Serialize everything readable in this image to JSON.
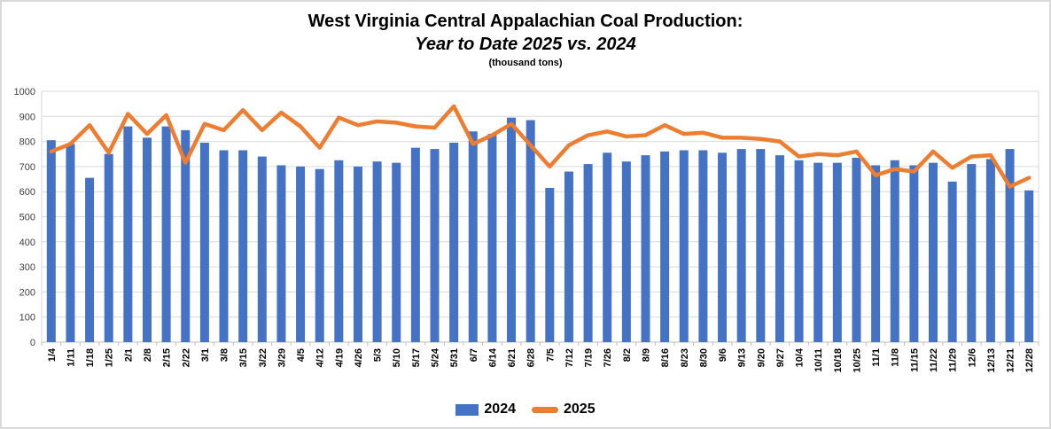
{
  "header": {
    "title": "West Virginia Central Appalachian Coal Production:",
    "subtitle": "Year to Date 2025 vs. 2024",
    "units": "(thousand tons)"
  },
  "colors": {
    "bar_2024": "#4472C4",
    "line_2025": "#ED7D31",
    "gridline": "#D9D9D9",
    "axis_line": "#BFBFBF",
    "y_tick_label": "#404040",
    "x_tick_label": "#000000",
    "background": "#FFFFFF"
  },
  "chart_data": {
    "type": "combo",
    "title": "West Virginia Central Appalachian Coal Production:",
    "subtitle": "Year to Date 2025 vs. 2024",
    "units_label": "(thousand tons)",
    "grid": true,
    "legend_position": "bottom",
    "ylim": [
      0,
      1000
    ],
    "y_ticks": [
      0,
      100,
      200,
      300,
      400,
      500,
      600,
      700,
      800,
      900,
      1000
    ],
    "categories": [
      "1/4",
      "1/11",
      "1/18",
      "1/25",
      "2/1",
      "2/8",
      "2/15",
      "2/22",
      "3/1",
      "3/8",
      "3/15",
      "3/22",
      "3/29",
      "4/5",
      "4/12",
      "4/19",
      "4/26",
      "5/3",
      "5/10",
      "5/17",
      "5/24",
      "5/31",
      "6/7",
      "6/14",
      "6/21",
      "6/28",
      "7/5",
      "7/12",
      "7/19",
      "7/26",
      "8/2",
      "8/9",
      "8/16",
      "8/23",
      "8/30",
      "9/6",
      "9/13",
      "9/20",
      "9/27",
      "10/4",
      "10/11",
      "10/18",
      "10/25",
      "11/1",
      "11/8",
      "11/15",
      "11/22",
      "11/29",
      "12/6",
      "12/13",
      "12/21",
      "12/28"
    ],
    "series": [
      {
        "name": "2024",
        "type": "bar",
        "color": "#4472C4",
        "values": [
          805,
          790,
          655,
          750,
          860,
          815,
          860,
          845,
          795,
          765,
          765,
          740,
          705,
          700,
          690,
          725,
          700,
          720,
          715,
          775,
          770,
          795,
          840,
          830,
          895,
          885,
          615,
          680,
          710,
          755,
          720,
          745,
          760,
          765,
          765,
          755,
          770,
          770,
          745,
          725,
          715,
          715,
          735,
          705,
          725,
          705,
          715,
          640,
          710,
          730,
          770,
          605
        ]
      },
      {
        "name": "2025",
        "type": "line",
        "color": "#ED7D31",
        "values": [
          760,
          790,
          865,
          755,
          910,
          830,
          905,
          715,
          870,
          845,
          925,
          845,
          915,
          860,
          775,
          895,
          865,
          880,
          875,
          860,
          855,
          940,
          790,
          825,
          870,
          785,
          700,
          785,
          825,
          840,
          820,
          825,
          865,
          830,
          835,
          815,
          815,
          810,
          800,
          740,
          750,
          745,
          760,
          665,
          690,
          680,
          760,
          695,
          740,
          745,
          620,
          655
        ]
      }
    ]
  }
}
